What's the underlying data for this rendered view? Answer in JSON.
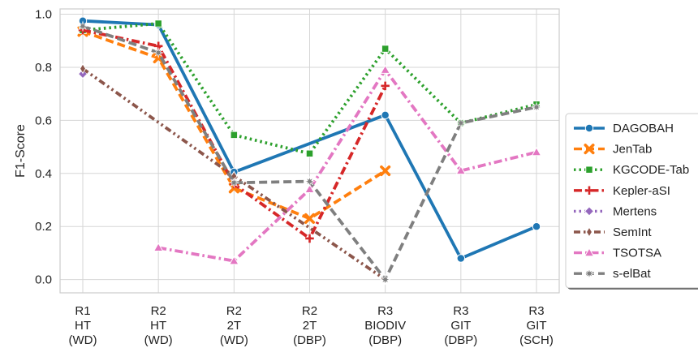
{
  "chart_data": {
    "type": "line",
    "categories": [
      [
        "R1",
        "HT",
        "(WD)"
      ],
      [
        "R2",
        "HT",
        "(WD)"
      ],
      [
        "R2",
        "2T",
        "(WD)"
      ],
      [
        "R2",
        "2T",
        "(DBP)"
      ],
      [
        "R3",
        "BIODIV",
        "(DBP)"
      ],
      [
        "R3",
        "GIT",
        "(DBP)"
      ],
      [
        "R3",
        "GIT",
        "(SCH)"
      ]
    ],
    "ylabel": "F1-Score",
    "xlabel": "",
    "ylim": [
      -0.05,
      1.02
    ],
    "yticks": [
      0.0,
      0.2,
      0.4,
      0.6,
      0.8,
      1.0
    ],
    "ytick_labels": [
      "0.0",
      "0.2",
      "0.4",
      "0.6",
      "0.8",
      "1.0"
    ],
    "grid": true,
    "legend_position": "right",
    "series": [
      {
        "name": "DAGOBAH",
        "color": "#1f77b4",
        "dash": "solid",
        "marker": "circle",
        "values": [
          0.975,
          0.96,
          0.405,
          null,
          0.62,
          0.08,
          0.2
        ]
      },
      {
        "name": "JenTab",
        "color": "#ff7f0e",
        "dash": "dashed",
        "marker": "x",
        "values": [
          0.935,
          0.835,
          0.345,
          0.23,
          0.41,
          null,
          null
        ]
      },
      {
        "name": "KGCODE-Tab",
        "color": "#2ca02c",
        "dash": "dotted",
        "marker": "square",
        "values": [
          0.94,
          0.965,
          0.545,
          0.475,
          0.87,
          0.59,
          0.66
        ]
      },
      {
        "name": "Kepler-aSI",
        "color": "#d62728",
        "dash": "dashdot",
        "marker": "plus",
        "values": [
          0.94,
          0.88,
          0.36,
          0.155,
          0.73,
          null,
          null
        ]
      },
      {
        "name": "Mertens",
        "color": "#9467bd",
        "dash": "dotted",
        "marker": "diamond",
        "values": [
          0.775,
          null,
          null,
          null,
          null,
          null,
          null
        ]
      },
      {
        "name": "SemInt",
        "color": "#8c564b",
        "dash": "dashdotdot",
        "marker": "thin-diamond",
        "values": [
          0.795,
          null,
          0.39,
          null,
          0.0,
          null,
          null
        ]
      },
      {
        "name": "TSOTSA",
        "color": "#e377c2",
        "dash": "dashdot",
        "marker": "triangle",
        "values": [
          null,
          0.12,
          0.07,
          0.34,
          0.79,
          0.41,
          0.48
        ]
      },
      {
        "name": "s-elBat",
        "color": "#7f7f7f",
        "dash": "dashed",
        "marker": "star",
        "values": [
          0.955,
          0.855,
          0.365,
          0.37,
          0.0,
          0.59,
          0.65
        ]
      }
    ]
  }
}
